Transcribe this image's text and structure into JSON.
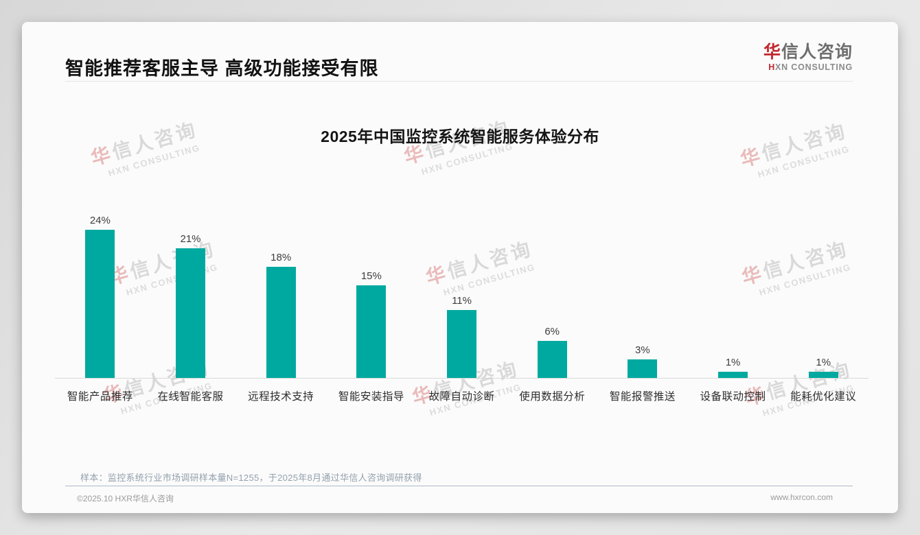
{
  "page": {
    "title": "智能推荐客服主导 高级功能接受有限"
  },
  "logo": {
    "cn_first": "华",
    "cn_rest": "信人咨询",
    "en_first": "H",
    "en_rest": "XN CONSULTING"
  },
  "watermark": {
    "line1_first": "华",
    "line1_rest": "信人咨询",
    "line2": "HXN CONSULTING"
  },
  "chart_data": {
    "type": "bar",
    "title": "2025年中国监控系统智能服务体验分布",
    "categories": [
      "智能产品推荐",
      "在线智能客服",
      "远程技术支持",
      "智能安装指导",
      "故障自动诊断",
      "使用数据分析",
      "智能报警推送",
      "设备联动控制",
      "能耗优化建议"
    ],
    "values": [
      24,
      21,
      18,
      15,
      11,
      6,
      3,
      1,
      1
    ],
    "value_labels": [
      "24%",
      "21%",
      "18%",
      "15%",
      "11%",
      "6%",
      "3%",
      "1%",
      "1%"
    ],
    "xlabel": "",
    "ylabel": "",
    "ylim": [
      0,
      26
    ],
    "grid": false,
    "legend": "none",
    "bar_color": "#00a9a0",
    "value_label_position": "above-bar"
  },
  "footnote": "样本：监控系统行业市场调研样本量N=1255，于2025年8月通过华信人咨询调研获得",
  "footer": {
    "copyright": "©2025.10 HXR华信人咨询",
    "website": "www.hxrcon.com"
  },
  "colors": {
    "bar": "#00a9a0",
    "accent_red": "#c1272d",
    "axis_line": "#d8d8d8"
  }
}
